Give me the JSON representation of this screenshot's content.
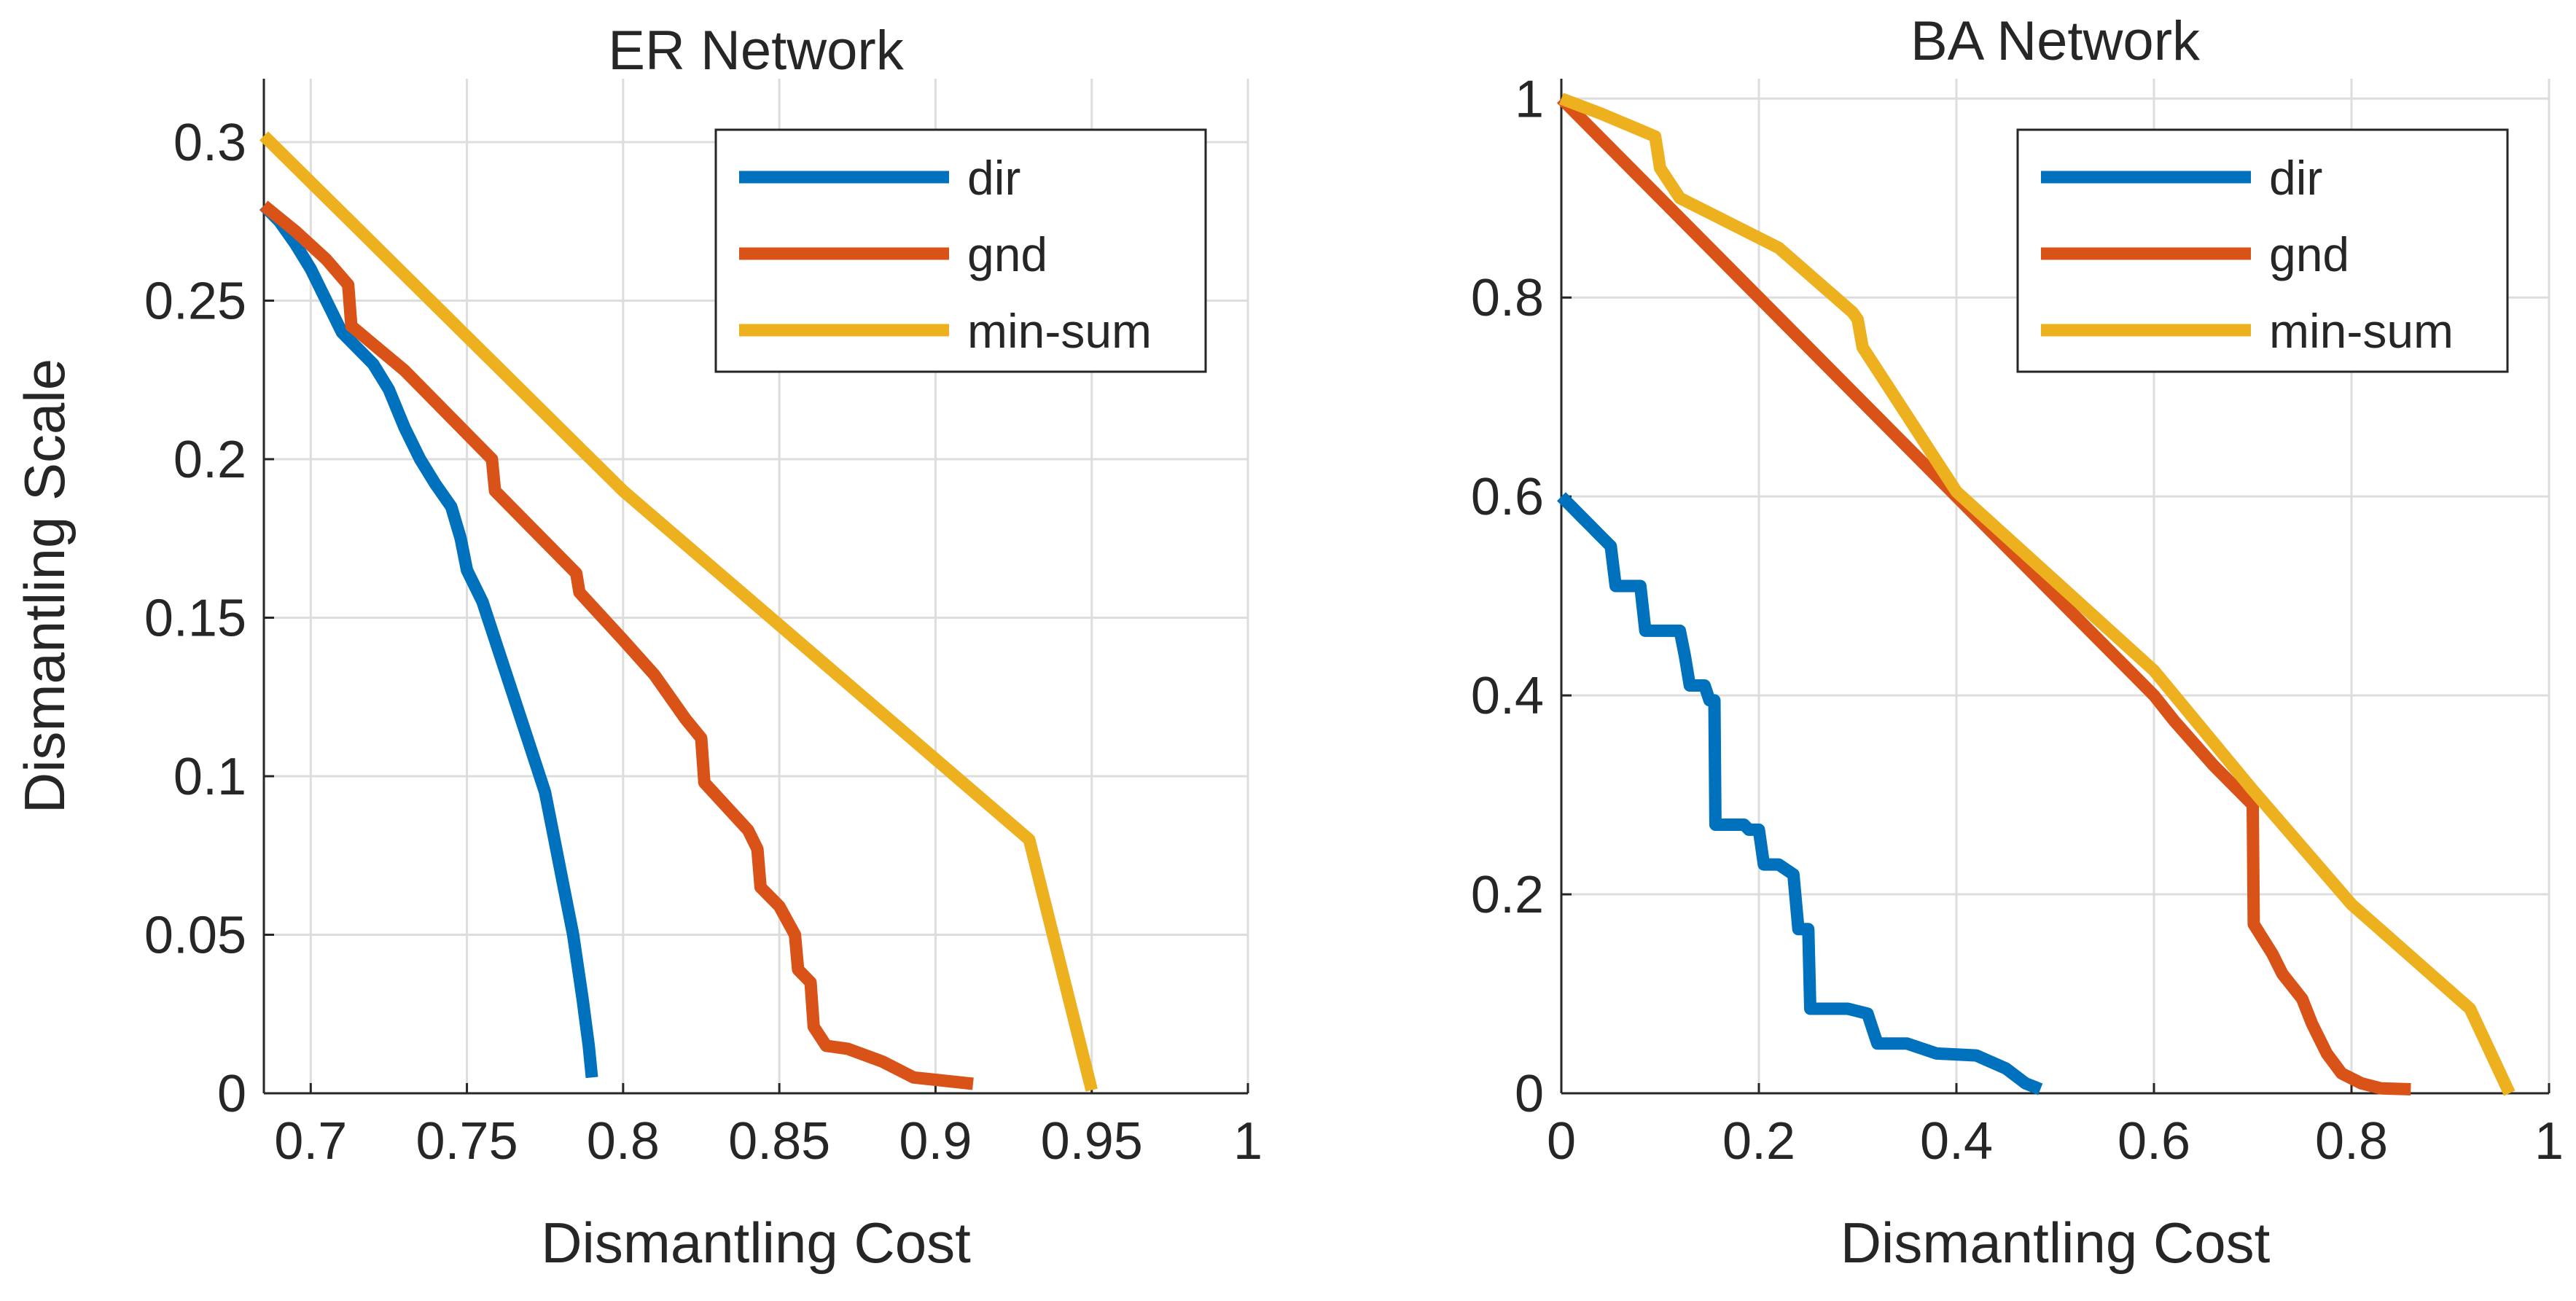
{
  "chart_data": [
    {
      "type": "line",
      "title": "ER Network",
      "xlabel": "Dismantling Cost",
      "ylabel": "Dismantling Scale",
      "xlim": [
        0.685,
        1.0
      ],
      "ylim": [
        0,
        0.32
      ],
      "xticks": [
        0.7,
        0.75,
        0.8,
        0.85,
        0.9,
        0.95,
        1
      ],
      "xtick_labels": [
        "0.7",
        "0.75",
        "0.8",
        "0.85",
        "0.9",
        "0.95",
        "1"
      ],
      "yticks": [
        0,
        0.05,
        0.1,
        0.15,
        0.2,
        0.25,
        0.3
      ],
      "ytick_labels": [
        "0",
        "0.05",
        "0.1",
        "0.15",
        "0.2",
        "0.25",
        "0.3"
      ],
      "grid": true,
      "legend_position": "top-right",
      "series": [
        {
          "name": "dir",
          "color": "#0072BD",
          "points": [
            [
              0.685,
              0.28
            ],
            [
              0.69,
              0.275
            ],
            [
              0.695,
              0.268
            ],
            [
              0.7,
              0.26
            ],
            [
              0.705,
              0.25
            ],
            [
              0.71,
              0.24
            ],
            [
              0.715,
              0.235
            ],
            [
              0.72,
              0.23
            ],
            [
              0.725,
              0.222
            ],
            [
              0.73,
              0.21
            ],
            [
              0.735,
              0.2
            ],
            [
              0.74,
              0.192
            ],
            [
              0.745,
              0.185
            ],
            [
              0.748,
              0.175
            ],
            [
              0.75,
              0.165
            ],
            [
              0.755,
              0.155
            ],
            [
              0.76,
              0.14
            ],
            [
              0.765,
              0.125
            ],
            [
              0.77,
              0.11
            ],
            [
              0.775,
              0.095
            ],
            [
              0.778,
              0.08
            ],
            [
              0.781,
              0.065
            ],
            [
              0.784,
              0.05
            ],
            [
              0.787,
              0.03
            ],
            [
              0.789,
              0.015
            ],
            [
              0.79,
              0.005
            ]
          ]
        },
        {
          "name": "gnd",
          "color": "#D95319",
          "points": [
            [
              0.685,
              0.28
            ],
            [
              0.695,
              0.272
            ],
            [
              0.705,
              0.263
            ],
            [
              0.712,
              0.255
            ],
            [
              0.713,
              0.242
            ],
            [
              0.73,
              0.228
            ],
            [
              0.75,
              0.208
            ],
            [
              0.758,
              0.2
            ],
            [
              0.759,
              0.19
            ],
            [
              0.775,
              0.174
            ],
            [
              0.785,
              0.164
            ],
            [
              0.786,
              0.158
            ],
            [
              0.8,
              0.143
            ],
            [
              0.81,
              0.132
            ],
            [
              0.82,
              0.118
            ],
            [
              0.825,
              0.112
            ],
            [
              0.826,
              0.098
            ],
            [
              0.84,
              0.083
            ],
            [
              0.843,
              0.077
            ],
            [
              0.844,
              0.065
            ],
            [
              0.85,
              0.059
            ],
            [
              0.855,
              0.05
            ],
            [
              0.856,
              0.039
            ],
            [
              0.86,
              0.035
            ],
            [
              0.861,
              0.021
            ],
            [
              0.865,
              0.015
            ],
            [
              0.872,
              0.014
            ],
            [
              0.883,
              0.01
            ],
            [
              0.893,
              0.005
            ],
            [
              0.912,
              0.003
            ]
          ]
        },
        {
          "name": "min-sum",
          "color": "#EDB120",
          "points": [
            [
              0.685,
              0.302
            ],
            [
              0.8,
              0.19
            ],
            [
              0.93,
              0.08
            ],
            [
              0.95,
              0.001
            ]
          ]
        }
      ]
    },
    {
      "type": "line",
      "title": "BA Network",
      "xlabel": "Dismantling Cost",
      "ylabel": "",
      "xlim": [
        0,
        1
      ],
      "ylim": [
        0,
        1.02
      ],
      "xticks": [
        0,
        0.2,
        0.4,
        0.6,
        0.8,
        1
      ],
      "xtick_labels": [
        "0",
        "0.2",
        "0.4",
        "0.6",
        "0.8",
        "1"
      ],
      "yticks": [
        0,
        0.2,
        0.4,
        0.6,
        0.8,
        1
      ],
      "ytick_labels": [
        "0",
        "0.2",
        "0.4",
        "0.6",
        "0.8",
        "1"
      ],
      "grid": true,
      "legend_position": "top-right",
      "series": [
        {
          "name": "dir",
          "color": "#0072BD",
          "points": [
            [
              0,
              0.6
            ],
            [
              0.01,
              0.59
            ],
            [
              0.02,
              0.58
            ],
            [
              0.03,
              0.57
            ],
            [
              0.04,
              0.56
            ],
            [
              0.05,
              0.55
            ],
            [
              0.055,
              0.51
            ],
            [
              0.08,
              0.51
            ],
            [
              0.085,
              0.465
            ],
            [
              0.12,
              0.465
            ],
            [
              0.125,
              0.44
            ],
            [
              0.13,
              0.41
            ],
            [
              0.145,
              0.41
            ],
            [
              0.15,
              0.395
            ],
            [
              0.155,
              0.395
            ],
            [
              0.156,
              0.27
            ],
            [
              0.185,
              0.27
            ],
            [
              0.19,
              0.265
            ],
            [
              0.2,
              0.265
            ],
            [
              0.205,
              0.23
            ],
            [
              0.22,
              0.23
            ],
            [
              0.235,
              0.22
            ],
            [
              0.24,
              0.165
            ],
            [
              0.25,
              0.165
            ],
            [
              0.252,
              0.085
            ],
            [
              0.29,
              0.085
            ],
            [
              0.31,
              0.08
            ],
            [
              0.315,
              0.065
            ],
            [
              0.32,
              0.05
            ],
            [
              0.35,
              0.05
            ],
            [
              0.38,
              0.04
            ],
            [
              0.42,
              0.038
            ],
            [
              0.45,
              0.025
            ],
            [
              0.47,
              0.01
            ],
            [
              0.485,
              0.004
            ]
          ]
        },
        {
          "name": "gnd",
          "color": "#D95319",
          "points": [
            [
              0,
              1.0
            ],
            [
              0.4,
              0.6
            ],
            [
              0.6,
              0.4
            ],
            [
              0.62,
              0.375
            ],
            [
              0.66,
              0.33
            ],
            [
              0.7,
              0.29
            ],
            [
              0.701,
              0.17
            ],
            [
              0.72,
              0.14
            ],
            [
              0.73,
              0.12
            ],
            [
              0.75,
              0.095
            ],
            [
              0.76,
              0.07
            ],
            [
              0.775,
              0.04
            ],
            [
              0.79,
              0.02
            ],
            [
              0.81,
              0.01
            ],
            [
              0.83,
              0.005
            ],
            [
              0.86,
              0.004
            ]
          ]
        },
        {
          "name": "min-sum",
          "color": "#EDB120",
          "points": [
            [
              0,
              1.0
            ],
            [
              0.04,
              0.985
            ],
            [
              0.095,
              0.962
            ],
            [
              0.1,
              0.93
            ],
            [
              0.12,
              0.9
            ],
            [
              0.15,
              0.885
            ],
            [
              0.22,
              0.85
            ],
            [
              0.295,
              0.785
            ],
            [
              0.3,
              0.778
            ],
            [
              0.305,
              0.75
            ],
            [
              0.4,
              0.605
            ],
            [
              0.5,
              0.515
            ],
            [
              0.6,
              0.425
            ],
            [
              0.7,
              0.305
            ],
            [
              0.8,
              0.19
            ],
            [
              0.92,
              0.085
            ],
            [
              0.96,
              0.0
            ]
          ]
        }
      ]
    }
  ]
}
